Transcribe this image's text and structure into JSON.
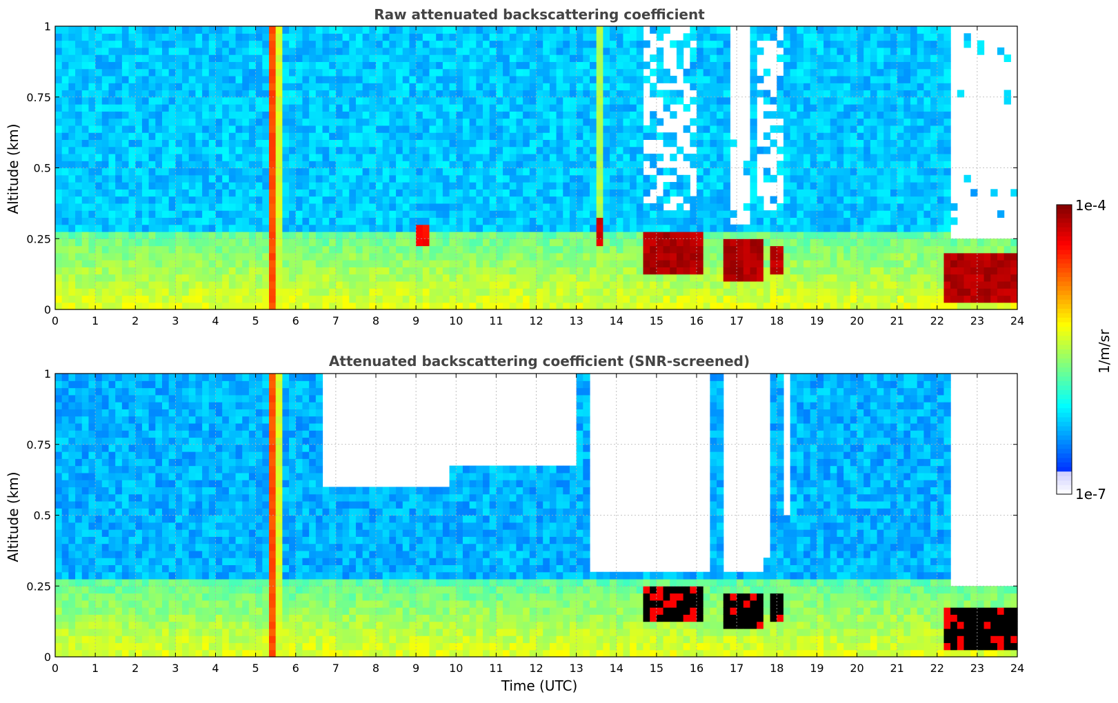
{
  "chart_data": [
    {
      "type": "heatmap",
      "title": "Raw attenuated backscattering coefficient",
      "xlabel": "",
      "ylabel": "Altitude (km)",
      "xlim": [
        0,
        24
      ],
      "ylim": [
        0,
        1
      ],
      "x_ticks": [
        "0",
        "1",
        "2",
        "3",
        "4",
        "5",
        "6",
        "7",
        "8",
        "9",
        "10",
        "11",
        "12",
        "13",
        "14",
        "15",
        "16",
        "17",
        "18",
        "19",
        "20",
        "21",
        "22",
        "23",
        "24"
      ],
      "y_ticks": [
        "0",
        "0.25",
        "0.5",
        "0.75",
        "1"
      ],
      "grid": true,
      "colorscale": "jet",
      "base_level": 0.32,
      "surface_layer": {
        "description_levels": "aerosol layer between ~0.05 and 0.3 km",
        "top_km": 0.28,
        "level": 0.6
      },
      "vertical_streaks": [
        {
          "x_start": 5.28,
          "x_end": 5.43,
          "level": 0.8
        },
        {
          "x_start": 5.5,
          "x_end": 5.7,
          "level": 0.58
        },
        {
          "x_start": 13.55,
          "x_end": 13.7,
          "level": 0.55
        }
      ],
      "high_backscatter_patches": [
        {
          "x_start": 14.7,
          "x_end": 16.1,
          "alt_low": 0.12,
          "alt_high": 0.28,
          "level": 0.98
        },
        {
          "x_start": 16.75,
          "x_end": 17.6,
          "alt_low": 0.1,
          "alt_high": 0.25,
          "level": 0.98
        },
        {
          "x_start": 17.8,
          "x_end": 18.15,
          "alt_low": 0.12,
          "alt_high": 0.22,
          "level": 0.97
        },
        {
          "x_start": 22.25,
          "x_end": 24.0,
          "alt_low": 0.03,
          "alt_high": 0.2,
          "level": 0.98
        },
        {
          "x_start": 9.0,
          "x_end": 9.35,
          "alt_low": 0.23,
          "alt_high": 0.3,
          "level": 0.9
        },
        {
          "x_start": 13.55,
          "x_end": 13.7,
          "alt_low": 0.22,
          "alt_high": 0.32,
          "level": 0.95
        }
      ],
      "no_data_regions": [
        {
          "x_start": 14.7,
          "x_end": 16.0,
          "alt_low": 0.35,
          "alt_high": 1.0,
          "coverage": 0.55
        },
        {
          "x_start": 16.9,
          "x_end": 17.4,
          "alt_low": 0.3,
          "alt_high": 1.0,
          "coverage": 0.95
        },
        {
          "x_start": 17.5,
          "x_end": 18.2,
          "alt_low": 0.35,
          "alt_high": 1.0,
          "coverage": 0.6
        },
        {
          "x_start": 22.35,
          "x_end": 24.0,
          "alt_low": 0.25,
          "alt_high": 1.0,
          "coverage": 0.95
        }
      ]
    },
    {
      "type": "heatmap",
      "title": "Attenuated backscattering coefficient (SNR-screened)",
      "xlabel": "Time (UTC)",
      "ylabel": "Altitude (km)",
      "xlim": [
        0,
        24
      ],
      "ylim": [
        0,
        1
      ],
      "x_ticks": [
        "0",
        "1",
        "2",
        "3",
        "4",
        "5",
        "6",
        "7",
        "8",
        "9",
        "10",
        "11",
        "12",
        "13",
        "14",
        "15",
        "16",
        "17",
        "18",
        "19",
        "20",
        "21",
        "22",
        "23",
        "24"
      ],
      "y_ticks": [
        "0",
        "0.25",
        "0.5",
        "0.75",
        "1"
      ],
      "grid": true,
      "colorscale": "jet",
      "base_level": 0.3,
      "surface_layer": {
        "top_km": 0.28,
        "level": 0.6
      },
      "vertical_streaks": [
        {
          "x_start": 5.28,
          "x_end": 5.43,
          "level": 0.8
        },
        {
          "x_start": 5.5,
          "x_end": 5.7,
          "level": 0.58
        }
      ],
      "saturated_patches": [
        {
          "x_start": 14.7,
          "x_end": 16.1,
          "alt_low": 0.12,
          "alt_high": 0.25
        },
        {
          "x_start": 16.75,
          "x_end": 17.6,
          "alt_low": 0.1,
          "alt_high": 0.22
        },
        {
          "x_start": 17.8,
          "x_end": 18.15,
          "alt_low": 0.12,
          "alt_high": 0.22
        },
        {
          "x_start": 22.25,
          "x_end": 24.0,
          "alt_low": 0.03,
          "alt_high": 0.18
        }
      ],
      "no_data_regions": [
        {
          "x_start": 6.6,
          "x_end": 9.9,
          "alt_low": 0.6,
          "alt_high": 1.0
        },
        {
          "x_start": 9.9,
          "x_end": 13.0,
          "alt_low": 0.68,
          "alt_high": 1.0
        },
        {
          "x_start": 13.3,
          "x_end": 16.3,
          "alt_low": 0.3,
          "alt_high": 1.0
        },
        {
          "x_start": 16.6,
          "x_end": 17.6,
          "alt_low": 0.3,
          "alt_high": 1.0
        },
        {
          "x_start": 17.7,
          "x_end": 17.85,
          "alt_low": 0.35,
          "alt_high": 1.0
        },
        {
          "x_start": 18.2,
          "x_end": 18.3,
          "alt_low": 0.5,
          "alt_high": 1.0
        },
        {
          "x_start": 22.3,
          "x_end": 24.0,
          "alt_low": 0.25,
          "alt_high": 1.0
        }
      ]
    }
  ],
  "colorbar": {
    "label": "1/m/sr",
    "max_label": "1e-4",
    "min_label": "1e-7",
    "colorscale": "jet"
  }
}
